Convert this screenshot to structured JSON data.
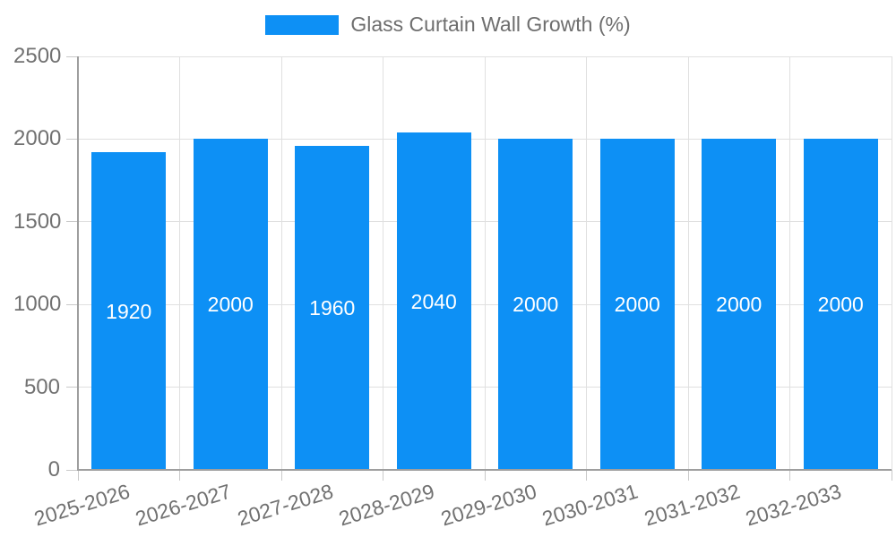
{
  "chart_data": {
    "type": "bar",
    "title": "",
    "legend": {
      "label": "Glass Curtain Wall Growth (%)",
      "position": "top"
    },
    "categories": [
      "2025-2026",
      "2026-2027",
      "2027-2028",
      "2028-2029",
      "2029-2030",
      "2030-2031",
      "2031-2032",
      "2032-2033"
    ],
    "values": [
      1920,
      2000,
      1960,
      2040,
      2000,
      2000,
      2000,
      2000
    ],
    "bar_labels": [
      "1920",
      "2000",
      "1960",
      "2040",
      "2000",
      "2000",
      "2000",
      "2000"
    ],
    "xlabel": "",
    "ylabel": "",
    "ylim": [
      0,
      2500
    ],
    "yticks": [
      0,
      500,
      1000,
      1500,
      2000,
      2500
    ],
    "grid": true,
    "legend_position": "top"
  },
  "colors": {
    "bar": "#0d90f5",
    "grid": "#e0e0e0",
    "axis": "#9e9e9e",
    "tick": "#c9c9c9",
    "axis_text": "#717171",
    "legend_text": "#6e6e6e",
    "bar_label": "#ffffff",
    "background": "#ffffff"
  }
}
